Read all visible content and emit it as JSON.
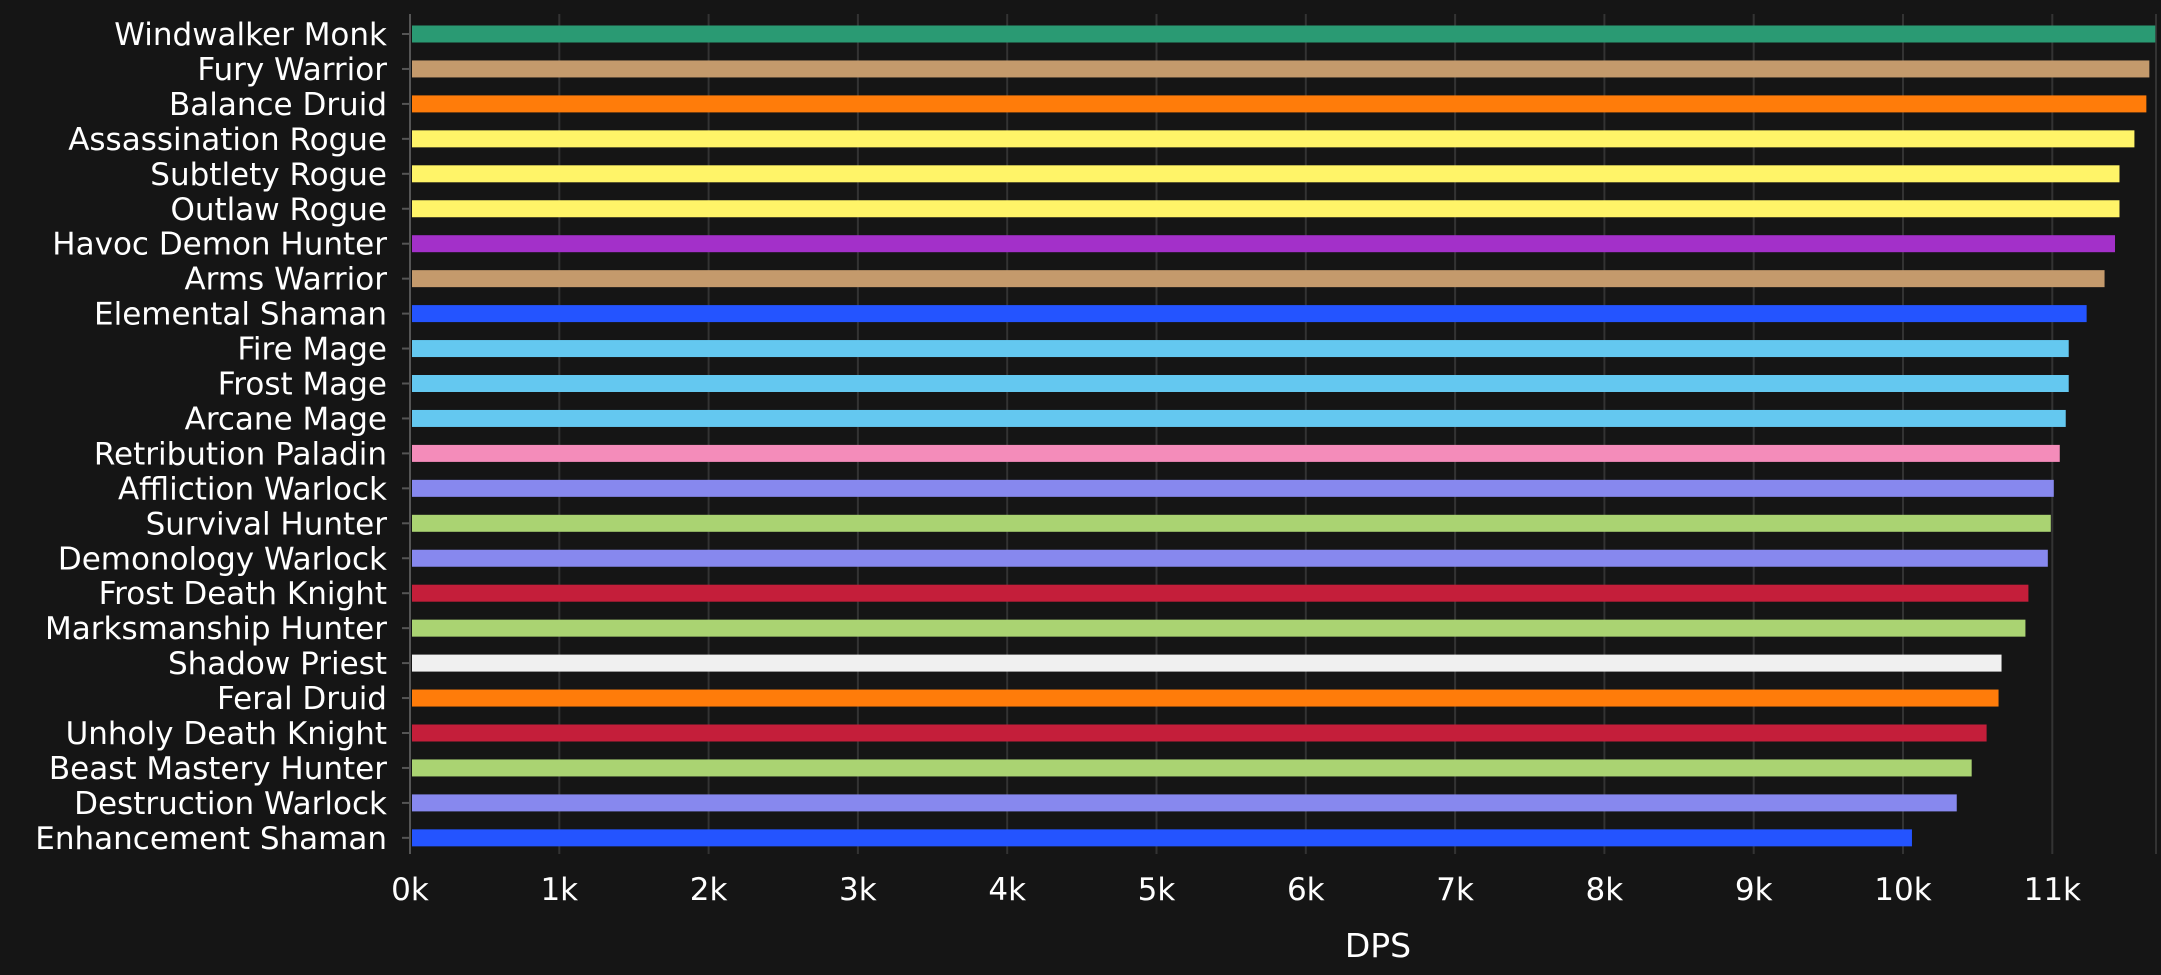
{
  "chart_data": {
    "type": "bar",
    "orientation": "horizontal",
    "xlabel": "DPS",
    "ylabel": "",
    "xlim": [
      0,
      11700
    ],
    "grid": true,
    "categories": [
      "Windwalker Monk",
      "Fury Warrior",
      "Balance Druid",
      "Assassination Rogue",
      "Subtlety Rogue",
      "Outlaw Rogue",
      "Havoc Demon Hunter",
      "Arms Warrior",
      "Elemental Shaman",
      "Fire Mage",
      "Frost Mage",
      "Arcane Mage",
      "Retribution Paladin",
      "Affliction Warlock",
      "Survival Hunter",
      "Demonology Warlock",
      "Frost Death Knight",
      "Marksmanship Hunter",
      "Shadow Priest",
      "Feral Druid",
      "Unholy Death Knight",
      "Beast Mastery Hunter",
      "Destruction Warlock",
      "Enhancement Shaman"
    ],
    "values": [
      11690,
      11650,
      11630,
      11550,
      11450,
      11450,
      11420,
      11350,
      11230,
      11110,
      11110,
      11090,
      11050,
      11010,
      10990,
      10970,
      10840,
      10820,
      10660,
      10640,
      10560,
      10460,
      10360,
      10060
    ],
    "colors": [
      "#2a9a73",
      "#c49a6c",
      "#ff7c0a",
      "#fff468",
      "#fff468",
      "#fff468",
      "#a330c9",
      "#c49a6c",
      "#2454ff",
      "#64c8f0",
      "#64c8f0",
      "#64c8f0",
      "#f48cba",
      "#8788ee",
      "#aad372",
      "#8788ee",
      "#c41e3a",
      "#aad372",
      "#f0f0f0",
      "#ff7c0a",
      "#c41e3a",
      "#aad372",
      "#8788ee",
      "#2454ff"
    ],
    "xticks": [
      0,
      1000,
      2000,
      3000,
      4000,
      5000,
      6000,
      7000,
      8000,
      9000,
      10000,
      11000
    ],
    "xtick_labels": [
      "0k",
      "1k",
      "2k",
      "3k",
      "4k",
      "5k",
      "6k",
      "7k",
      "8k",
      "9k",
      "10k",
      "11k"
    ]
  },
  "style": {
    "background": "#151515",
    "grid_color": "#333333",
    "axis_color": "#555555",
    "text_color": "#ffffff"
  }
}
